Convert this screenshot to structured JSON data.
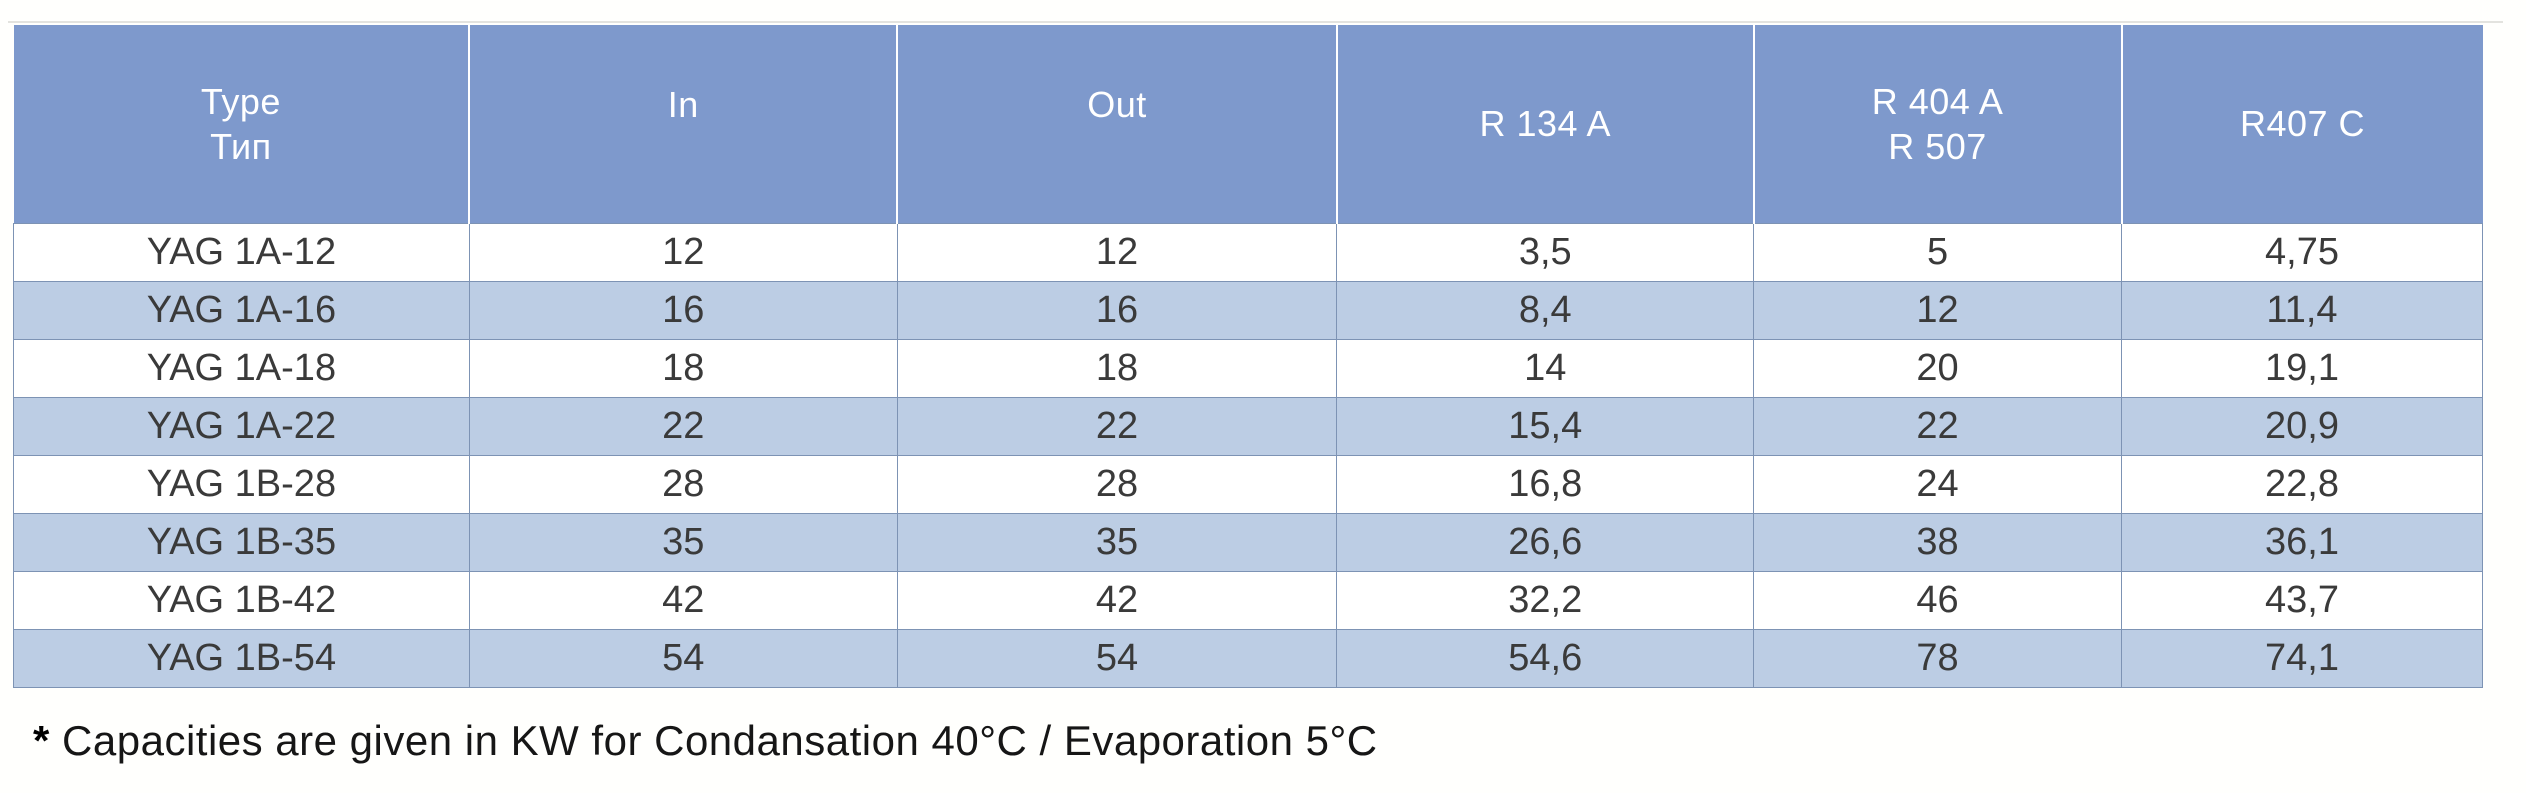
{
  "colors": {
    "header_bg": "#7e99cc",
    "stripe_bg": "#bccde4",
    "grid_border": "#7d93b4",
    "header_text": "#ffffff",
    "body_text": "#3a3a3a"
  },
  "table": {
    "columns": [
      {
        "id": "type",
        "lines": [
          "Type",
          "Тип"
        ]
      },
      {
        "id": "in",
        "lines": [
          "In"
        ]
      },
      {
        "id": "out",
        "lines": [
          "Out"
        ]
      },
      {
        "id": "r134a",
        "lines": [
          "R 134 A"
        ]
      },
      {
        "id": "r404a-r507",
        "lines": [
          "R 404 A",
          "R 507"
        ]
      },
      {
        "id": "r407c",
        "lines": [
          "R407 C"
        ]
      }
    ],
    "rows": [
      [
        "YAG 1A-12",
        "12",
        "12",
        "3,5",
        "5",
        "4,75"
      ],
      [
        "YAG 1A-16",
        "16",
        "16",
        "8,4",
        "12",
        "11,4"
      ],
      [
        "YAG 1A-18",
        "18",
        "18",
        "14",
        "20",
        "19,1"
      ],
      [
        "YAG 1A-22",
        "22",
        "22",
        "15,4",
        "22",
        "20,9"
      ],
      [
        "YAG 1B-28",
        "28",
        "28",
        "16,8",
        "24",
        "22,8"
      ],
      [
        "YAG 1B-35",
        "35",
        "35",
        "26,6",
        "38",
        "36,1"
      ],
      [
        "YAG 1B-42",
        "42",
        "42",
        "32,2",
        "46",
        "43,7"
      ],
      [
        "YAG 1B-54",
        "54",
        "54",
        "54,6",
        "78",
        "74,1"
      ]
    ]
  },
  "footnote": {
    "marker": "*",
    "text": "Capacities are given in KW for Condansation 40°C / Evaporation 5°C"
  }
}
